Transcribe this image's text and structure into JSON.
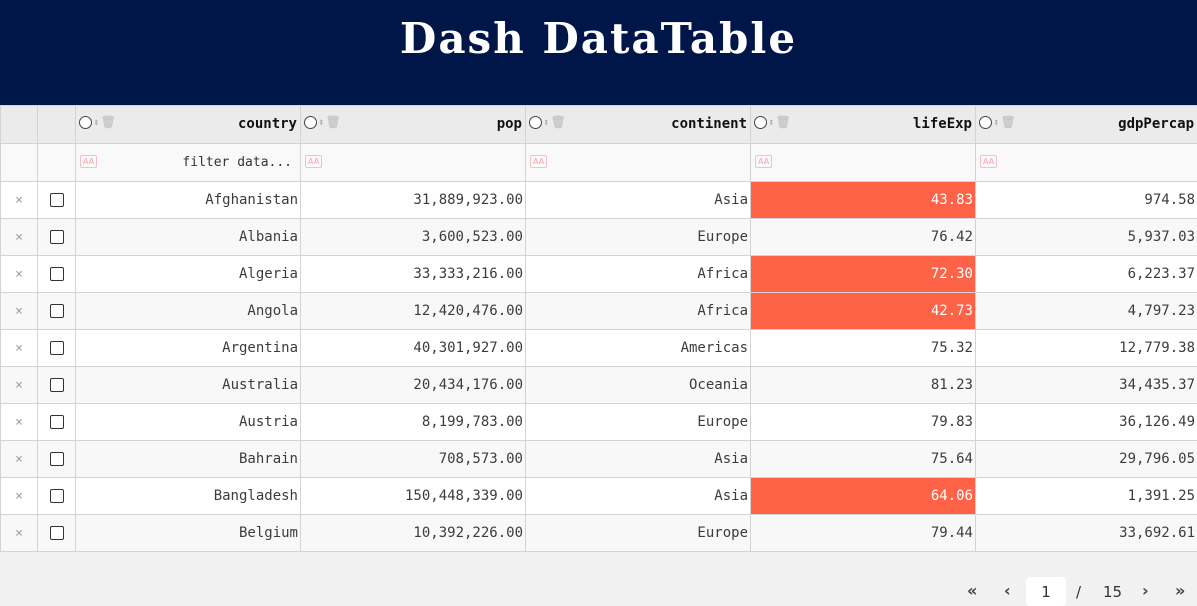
{
  "title": "Dash DataTable",
  "columns": [
    "country",
    "pop",
    "continent",
    "lifeExp",
    "gdpPercap"
  ],
  "filter_placeholder": "filter data...",
  "delete_glyph": "×",
  "filter_case_icon": "AA",
  "rows": [
    {
      "country": "Afghanistan",
      "pop": "31,889,923.00",
      "continent": "Asia",
      "lifeExp": "43.83",
      "gdpPercap": "974.58",
      "highlight": true
    },
    {
      "country": "Albania",
      "pop": "3,600,523.00",
      "continent": "Europe",
      "lifeExp": "76.42",
      "gdpPercap": "5,937.03",
      "highlight": false
    },
    {
      "country": "Algeria",
      "pop": "33,333,216.00",
      "continent": "Africa",
      "lifeExp": "72.30",
      "gdpPercap": "6,223.37",
      "highlight": true
    },
    {
      "country": "Angola",
      "pop": "12,420,476.00",
      "continent": "Africa",
      "lifeExp": "42.73",
      "gdpPercap": "4,797.23",
      "highlight": true
    },
    {
      "country": "Argentina",
      "pop": "40,301,927.00",
      "continent": "Americas",
      "lifeExp": "75.32",
      "gdpPercap": "12,779.38",
      "highlight": false
    },
    {
      "country": "Australia",
      "pop": "20,434,176.00",
      "continent": "Oceania",
      "lifeExp": "81.23",
      "gdpPercap": "34,435.37",
      "highlight": false
    },
    {
      "country": "Austria",
      "pop": "8,199,783.00",
      "continent": "Europe",
      "lifeExp": "79.83",
      "gdpPercap": "36,126.49",
      "highlight": false
    },
    {
      "country": "Bahrain",
      "pop": "708,573.00",
      "continent": "Asia",
      "lifeExp": "75.64",
      "gdpPercap": "29,796.05",
      "highlight": false
    },
    {
      "country": "Bangladesh",
      "pop": "150,448,339.00",
      "continent": "Asia",
      "lifeExp": "64.06",
      "gdpPercap": "1,391.25",
      "highlight": true
    },
    {
      "country": "Belgium",
      "pop": "10,392,226.00",
      "continent": "Europe",
      "lifeExp": "79.44",
      "gdpPercap": "33,692.61",
      "highlight": false
    }
  ],
  "pagination": {
    "first": "«",
    "prev": "‹",
    "current": "1",
    "separator": "/",
    "total": "15",
    "next": "›",
    "last": "»"
  },
  "colors": {
    "header_bg": "#001648",
    "highlight": "#ff6347"
  }
}
